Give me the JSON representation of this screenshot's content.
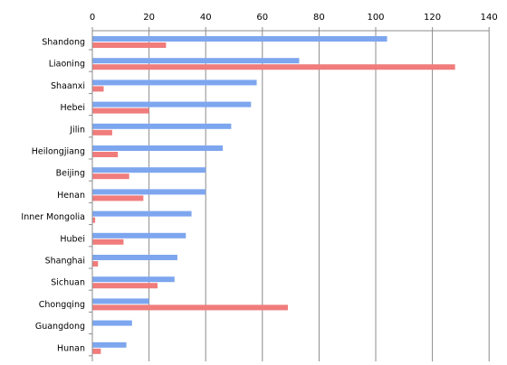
{
  "chart_data": {
    "type": "bar",
    "orientation": "horizontal",
    "categories": [
      "Shandong",
      "Liaoning",
      "Shaanxi",
      "Hebei",
      "Jilin",
      "Heilongjiang",
      "Beijing",
      "Henan",
      "Inner Mongolia",
      "Hubei",
      "Shanghai",
      "Sichuan",
      "Chongqing",
      "Guangdong",
      "Hunan"
    ],
    "series": [
      {
        "color": "#7da6ef",
        "values": [
          104,
          73,
          58,
          56,
          49,
          46,
          40,
          40,
          35,
          33,
          30,
          29,
          20,
          14,
          12
        ]
      },
      {
        "color": "#f07c7c",
        "values": [
          26,
          128,
          4,
          20,
          7,
          9,
          13,
          18,
          1,
          11,
          2,
          23,
          69,
          0,
          3
        ]
      }
    ],
    "xlim": [
      0,
      140
    ],
    "xticks": [
      0,
      20,
      40,
      60,
      80,
      100,
      120,
      140
    ],
    "xaxis_position": "top",
    "grid": true,
    "legend": "none",
    "title": "",
    "xlabel": "",
    "ylabel": ""
  }
}
